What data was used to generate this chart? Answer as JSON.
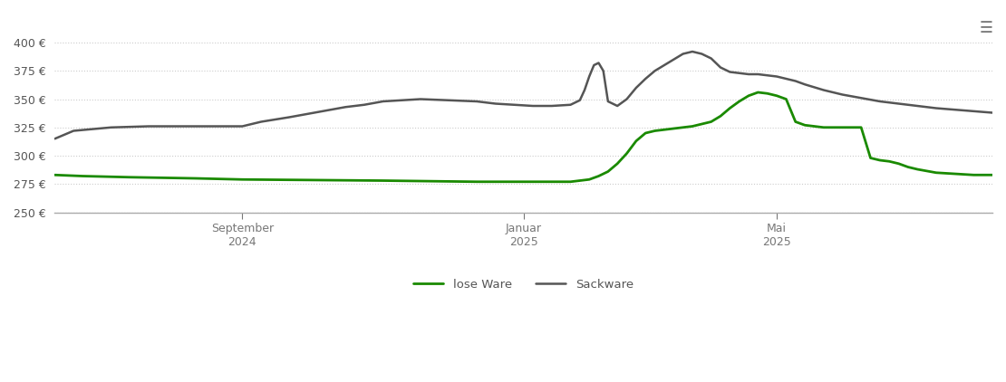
{
  "background_color": "#ffffff",
  "grid_color": "#cccccc",
  "lose_ware_color": "#1a8a00",
  "sackware_color": "#555555",
  "legend_labels": [
    "lose Ware",
    "Sackware"
  ],
  "ylim": [
    250,
    410
  ],
  "yticks": [
    250,
    275,
    300,
    325,
    350,
    375,
    400
  ],
  "xlim": [
    0,
    1000
  ],
  "xtick_positions": [
    200,
    500,
    770
  ],
  "xtick_labels": [
    "September\n2024",
    "Januar\n2025",
    "Mai\n2025"
  ],
  "lose_ware_x": [
    0,
    30,
    80,
    150,
    200,
    350,
    450,
    490,
    500,
    510,
    520,
    530,
    540,
    550,
    560,
    570,
    580,
    590,
    600,
    610,
    620,
    630,
    640,
    650,
    660,
    670,
    680,
    690,
    700,
    710,
    720,
    730,
    740,
    750,
    760,
    770,
    780,
    790,
    800,
    810,
    820,
    830,
    840,
    850,
    860,
    870,
    880,
    890,
    900,
    910,
    920,
    940,
    960,
    980,
    1000
  ],
  "lose_ware_y": [
    283,
    282,
    281,
    280,
    279,
    278,
    277,
    277,
    277,
    277,
    277,
    277,
    277,
    277,
    278,
    279,
    282,
    286,
    293,
    302,
    313,
    320,
    322,
    323,
    324,
    325,
    326,
    328,
    330,
    335,
    342,
    348,
    353,
    356,
    355,
    353,
    350,
    330,
    327,
    326,
    325,
    325,
    325,
    325,
    325,
    298,
    296,
    295,
    293,
    290,
    288,
    285,
    284,
    283,
    283
  ],
  "sackware_x": [
    0,
    20,
    60,
    100,
    130,
    160,
    195,
    200,
    220,
    250,
    270,
    290,
    310,
    330,
    350,
    370,
    390,
    420,
    450,
    470,
    490,
    510,
    530,
    550,
    560,
    565,
    570,
    575,
    580,
    585,
    590,
    600,
    610,
    620,
    630,
    640,
    650,
    660,
    670,
    680,
    690,
    700,
    710,
    720,
    730,
    740,
    750,
    760,
    770,
    780,
    790,
    800,
    820,
    840,
    860,
    880,
    910,
    940,
    970,
    1000
  ],
  "sackware_y": [
    315,
    322,
    325,
    326,
    326,
    326,
    326,
    326,
    330,
    334,
    337,
    340,
    343,
    345,
    348,
    349,
    350,
    349,
    348,
    346,
    345,
    344,
    344,
    345,
    349,
    358,
    370,
    380,
    382,
    375,
    348,
    344,
    350,
    360,
    368,
    375,
    380,
    385,
    390,
    392,
    390,
    386,
    378,
    374,
    373,
    372,
    372,
    371,
    370,
    368,
    366,
    363,
    358,
    354,
    351,
    348,
    345,
    342,
    340,
    338
  ]
}
